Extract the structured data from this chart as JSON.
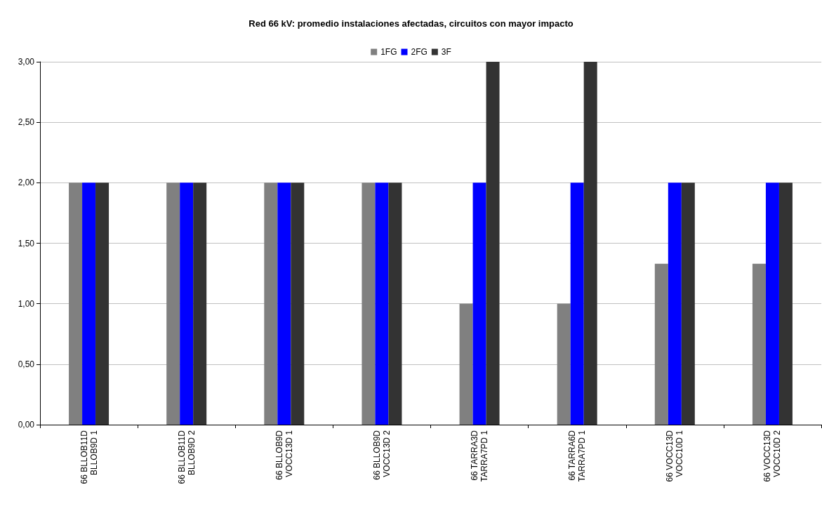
{
  "chart_data": {
    "type": "bar",
    "title": "Red 66 kV: promedio instalaciones afectadas, circuitos con mayor impacto",
    "categories": [
      "66 BLLOB11D\nBLLOB9D 1",
      "66 BLLOB11D\nBLLOB9D 2",
      "66 BLLOB9D\nVOCC13D 1",
      "66 BLLOB9D\nVOCC13D 2",
      "66 TARRA3D\nTARRA7PD 1",
      "66 TARRA6D\nTARRA7PD 1",
      "66 VOCC13D\nVOCC10D 1",
      "66 VOCC13D\nVOCC10D 2"
    ],
    "series": [
      {
        "name": "1FG",
        "color": "#808080",
        "values": [
          2,
          2,
          2,
          2,
          1,
          1,
          1.33,
          1.33
        ]
      },
      {
        "name": "2FG",
        "color": "#0000ff",
        "values": [
          2,
          2,
          2,
          2,
          2,
          2,
          2,
          2
        ]
      },
      {
        "name": "3F",
        "color": "#333333",
        "values": [
          2,
          2,
          2,
          2,
          3,
          3,
          2,
          2
        ]
      }
    ],
    "ylim": [
      0,
      3
    ],
    "yticks": [
      {
        "value": 0,
        "label": "0,00"
      },
      {
        "value": 0.5,
        "label": "0,50"
      },
      {
        "value": 1,
        "label": "1,00"
      },
      {
        "value": 1.5,
        "label": "1,50"
      },
      {
        "value": 2,
        "label": "2,00"
      },
      {
        "value": 2.5,
        "label": "2,50"
      },
      {
        "value": 3,
        "label": "3,00"
      }
    ],
    "grid": "y",
    "legend": "top"
  }
}
